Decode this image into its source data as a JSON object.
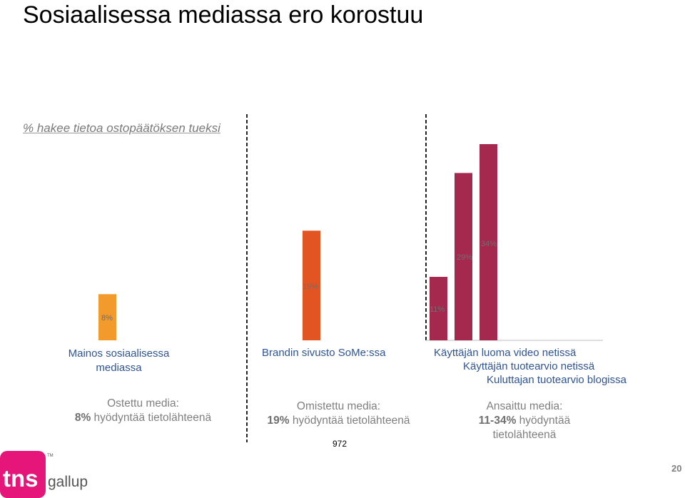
{
  "title": "Sosiaalisessa mediassa ero korostuu",
  "subtitle": "% hakee tietoa ostopäätöksen tueksi",
  "chart_data": {
    "type": "bar",
    "title": "% hakee tietoa ostopäätöksen tueksi",
    "groups": [
      {
        "name": "Ostettu media",
        "bars": [
          {
            "label": "Mainos sosiaalisessa mediassa",
            "value": 8,
            "value_label": "8%",
            "color": "#f39a2c"
          }
        ]
      },
      {
        "name": "Omistettu media",
        "bars": [
          {
            "label": "Brandin sivusto SoMe:ssa",
            "value": 19,
            "value_label": "19%",
            "color": "#e35423"
          }
        ]
      },
      {
        "name": "Ansaittu media",
        "bars": [
          {
            "label": "Käyttäjän luoma video netissä",
            "value": 11,
            "value_label": "11%",
            "color": "#a5294f"
          },
          {
            "label": "Käyttäjän tuotearvio netissä",
            "value": 29,
            "value_label": "29%",
            "color": "#a5294f"
          },
          {
            "label": "Kuluttajan tuotearvio blogissa",
            "value": 34,
            "value_label": "34%",
            "color": "#a5294f"
          }
        ]
      }
    ],
    "ylim": [
      0,
      34
    ],
    "grid": false,
    "legend": "none"
  },
  "categories": {
    "group1_line1": "Mainos sosiaalisessa",
    "group1_line2": "mediassa",
    "group2": "Brandin sivusto SoMe:ssa",
    "group3_line1": "Käyttäjän luoma video netissä",
    "group3_line2": "Käyttäjän tuotearvio netissä",
    "group3_line3": "Kuluttajan tuotearvio blogissa"
  },
  "media": {
    "bought_label": "Ostettu media:",
    "bought_value": "8%",
    "bought_suffix": "hyödyntää tietolähteenä",
    "owned_label": "Omistettu media:",
    "owned_value": "19%",
    "owned_suffix": "hyödyntää tietolähteenä",
    "earned_label": "Ansaittu media:",
    "earned_value": "11-34%",
    "earned_suffix": "hyödyntää",
    "earned_suffix2": "tietolähteenä"
  },
  "footnote": "972",
  "page_number": "20",
  "logo": {
    "brand": "tns",
    "sub": "gallup",
    "tm": "TM",
    "color": "#e5157a"
  }
}
